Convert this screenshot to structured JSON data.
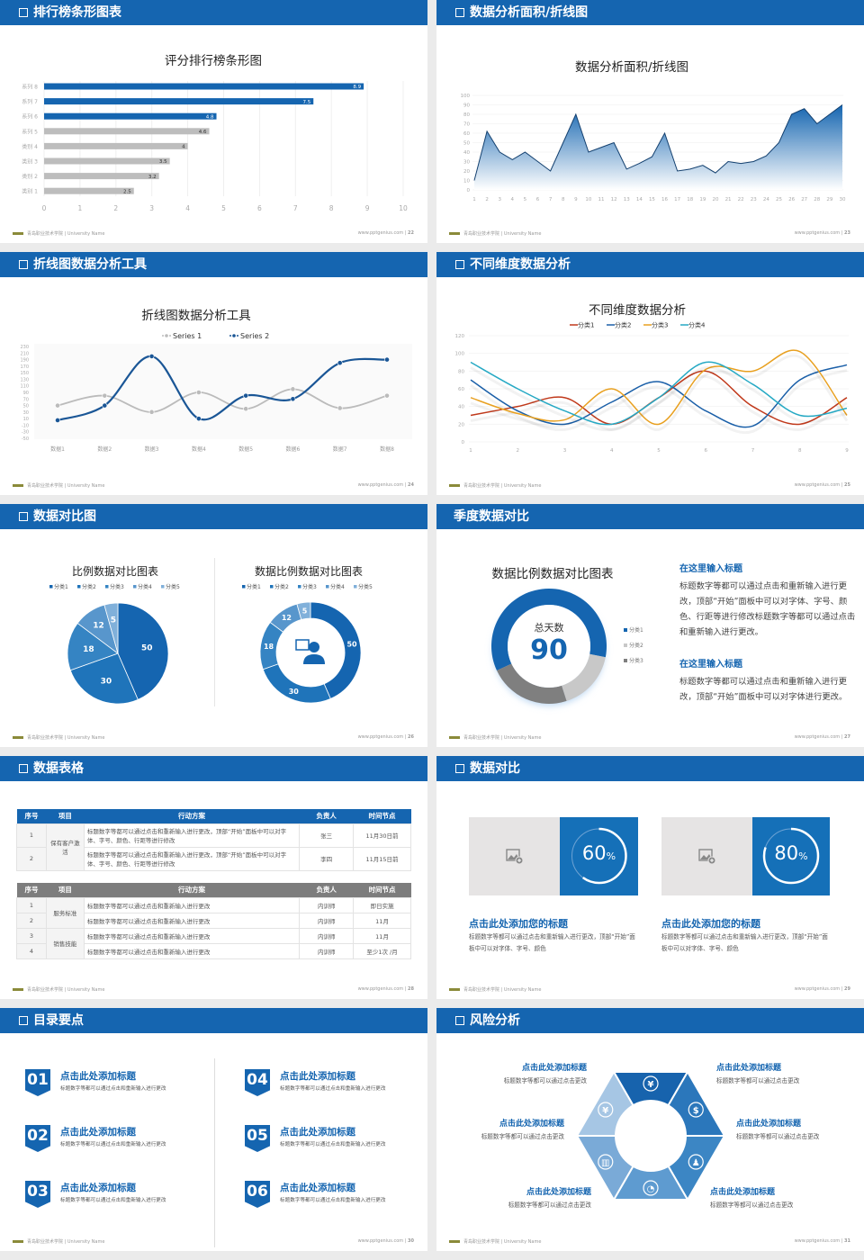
{
  "footer": {
    "school": "青岛职业技术学院 | University Name",
    "site": "www.pptgenius.com"
  },
  "colors": {
    "header_blue": "#1565b0",
    "background": "#ebebeb",
    "gray_bar": "#bdbdbd"
  },
  "slides": [
    {
      "title": "排行榜条形图表",
      "page": "22"
    },
    {
      "title": "数据分析面积/折线图",
      "page": "23"
    },
    {
      "title": "折线图数据分析工具",
      "page": "24"
    },
    {
      "title": "不同维度数据分析",
      "page": "25"
    },
    {
      "title": "数据对比图",
      "page": "26"
    },
    {
      "title": "季度数据对比",
      "page": "27",
      "center_label": "总天数",
      "center_value": "90",
      "blocks": [
        {
          "heading": "在这里输入标题",
          "body": "标题数字等都可以通过点击和重新输入进行更改，顶部“开始”面板中可以对字体、字号、颜色、行距等进行修改标题数字等都可以通过点击和重新输入进行更改。"
        },
        {
          "heading": "在这里输入标题",
          "body": "标题数字等都可以通过点击和重新输入进行更改，顶部“开始”面板中可以对字体进行更改。"
        }
      ]
    },
    {
      "title": "数据表格",
      "page": "28",
      "table1": {
        "headers": [
          "序号",
          "项目",
          "行动方案",
          "负责人",
          "时间节点"
        ],
        "group": "保有客户激活",
        "rows": [
          {
            "no": "1",
            "plan": "标题数字等都可以通过点击和重新输入进行更改，顶部“开始”面板中可以对字体、字号、颜色、行距等进行修改",
            "owner": "张三",
            "time": "11月30日前"
          },
          {
            "no": "2",
            "plan": "标题数字等都可以通过点击和重新输入进行更改，顶部“开始”面板中可以对字体、字号、颜色、行距等进行修改",
            "owner": "李四",
            "time": "11月15日前"
          }
        ]
      },
      "table2": {
        "headers": [
          "序号",
          "项目",
          "行动方案",
          "负责人",
          "时间节点"
        ],
        "groups": [
          "服务标准",
          "销售技能"
        ],
        "rows": [
          {
            "no": "1",
            "plan": "标题数字等都可以通过点击和重新输入进行更改",
            "owner": "内训师",
            "time": "即日实施"
          },
          {
            "no": "2",
            "plan": "标题数字等都可以通过点击和重新输入进行更改",
            "owner": "内训师",
            "time": "11月"
          },
          {
            "no": "3",
            "plan": "标题数字等都可以通过点击和重新输入进行更改",
            "owner": "内训师",
            "time": "11月"
          },
          {
            "no": "4",
            "plan": "标题数字等都可以通过点击和重新输入进行更改",
            "owner": "内训师",
            "time": "至少1次 /月"
          }
        ]
      }
    },
    {
      "title": "数据对比",
      "page": "29",
      "cards": [
        {
          "percent": 60,
          "percent_text": "60",
          "unit": "%",
          "title": "点击此处添加您的标题",
          "body": "标题数字等都可以通过点击和重新输入进行更改，顶部“开始”面板中可以对字体、字号、颜色"
        },
        {
          "percent": 80,
          "percent_text": "80",
          "unit": "%",
          "title": "点击此处添加您的标题",
          "body": "标题数字等都可以通过点击和重新输入进行更改，顶部“开始”面板中可以对字体、字号、颜色"
        }
      ]
    },
    {
      "title": "目录要点",
      "page": "30",
      "items": [
        {
          "num": "01",
          "title": "点击此处添加标题",
          "sub": "标题数字等都可以通过点击和重新输入进行更改"
        },
        {
          "num": "02",
          "title": "点击此处添加标题",
          "sub": "标题数字等都可以通过点击和重新输入进行更改"
        },
        {
          "num": "03",
          "title": "点击此处添加标题",
          "sub": "标题数字等都可以通过点击和重新输入进行更改"
        },
        {
          "num": "04",
          "title": "点击此处添加标题",
          "sub": "标题数字等都可以通过点击和重新输入进行更改"
        },
        {
          "num": "05",
          "title": "点击此处添加标题",
          "sub": "标题数字等都可以通过点击和重新输入进行更改"
        },
        {
          "num": "06",
          "title": "点击此处添加标题",
          "sub": "标题数字等都可以通过点击和重新输入进行更改"
        }
      ]
    },
    {
      "title": "风险分析",
      "page": "31",
      "items": [
        {
          "title": "点击此处添加标题",
          "sub": "标题数字等都可以通过点击更改",
          "icon": "money-bag-icon"
        },
        {
          "title": "点击此处添加标题",
          "sub": "标题数字等都可以通过点击更改",
          "icon": "coins-icon"
        },
        {
          "title": "点击此处添加标题",
          "sub": "标题数字等都可以通过点击更改",
          "icon": "users-icon"
        },
        {
          "title": "点击此处添加标题",
          "sub": "标题数字等都可以通过点击更改",
          "icon": "pie-chart-icon"
        },
        {
          "title": "点击此处添加标题",
          "sub": "标题数字等都可以通过点击更改",
          "icon": "building-icon"
        },
        {
          "title": "点击此处添加标题",
          "sub": "标题数字等都可以通过点击更改",
          "icon": "hand-money-icon"
        }
      ]
    }
  ],
  "chart_data": [
    {
      "type": "bar",
      "orientation": "horizontal",
      "title": "评分排行榜条形图",
      "categories": [
        "系列 8",
        "系列 7",
        "系列 6",
        "系列 5",
        "类别 4",
        "类别 3",
        "类别 2",
        "类别 1"
      ],
      "values": [
        8.9,
        7.5,
        4.8,
        4.6,
        4,
        3.5,
        3.2,
        2.5
      ],
      "value_labels": [
        "8.9",
        "7.5",
        "4.8",
        "4.6",
        "4",
        "3.5",
        "3.2",
        "2.5"
      ],
      "bar_colors": [
        "#1565b0",
        "#1565b0",
        "#1565b0",
        "#bdbdbd",
        "#bdbdbd",
        "#bdbdbd",
        "#bdbdbd",
        "#bdbdbd"
      ],
      "xlim": [
        0,
        10
      ],
      "xticks": [
        "0",
        "1",
        "2",
        "3",
        "4",
        "5",
        "6",
        "7",
        "8",
        "9",
        "10"
      ],
      "grid": true
    },
    {
      "type": "area",
      "title": "数据分析面积/折线图",
      "x": [
        "1",
        "2",
        "3",
        "4",
        "5",
        "6",
        "7",
        "8",
        "9",
        "10",
        "11",
        "12",
        "13",
        "14",
        "15",
        "16",
        "17",
        "18",
        "19",
        "20",
        "21",
        "22",
        "23",
        "24",
        "25",
        "26",
        "27",
        "28",
        "29",
        "30"
      ],
      "values": [
        10,
        62,
        40,
        32,
        40,
        30,
        20,
        50,
        80,
        40,
        45,
        50,
        22,
        28,
        35,
        60,
        20,
        22,
        26,
        18,
        30,
        28,
        30,
        36,
        50,
        80,
        86,
        70,
        80,
        90
      ],
      "ylim": [
        0,
        100
      ],
      "yticks": [
        "0",
        "10",
        "20",
        "30",
        "40",
        "50",
        "60",
        "70",
        "80",
        "90",
        "100"
      ],
      "color": "#1565b0"
    },
    {
      "type": "line",
      "title": "折线图数据分析工具",
      "smooth": true,
      "categories": [
        "数据1",
        "数据2",
        "数据3",
        "数据4",
        "数据5",
        "数据6",
        "数据7",
        "数据8"
      ],
      "series": [
        {
          "name": "Series 1",
          "values": [
            50,
            80,
            30,
            90,
            40,
            100,
            42,
            80
          ],
          "color": "#bbbbbb"
        },
        {
          "name": "Series 2",
          "values": [
            5,
            50,
            200,
            10,
            80,
            70,
            180,
            190
          ],
          "color": "#1a5696"
        }
      ],
      "ylim": [
        -50,
        230
      ],
      "yticks": [
        "230",
        "210",
        "190",
        "170",
        "150",
        "130",
        "110",
        "90",
        "70",
        "50",
        "30",
        "10",
        "-10",
        "-30",
        "-50"
      ],
      "legend": "top"
    },
    {
      "type": "line",
      "title": "不同维度数据分析",
      "smooth": true,
      "x": [
        "1",
        "2",
        "3",
        "4",
        "5",
        "6",
        "7",
        "8",
        "9"
      ],
      "series": [
        {
          "name": "分类1",
          "values": [
            30,
            40,
            50,
            20,
            50,
            80,
            40,
            20,
            50
          ],
          "color": "#c0391b"
        },
        {
          "name": "分类2",
          "values": [
            70,
            35,
            20,
            45,
            68,
            35,
            18,
            70,
            87
          ],
          "color": "#1a5fa8"
        },
        {
          "name": "分类3",
          "values": [
            50,
            32,
            25,
            60,
            20,
            82,
            80,
            102,
            30
          ],
          "color": "#e8a020"
        },
        {
          "name": "分类4",
          "values": [
            90,
            60,
            35,
            20,
            50,
            90,
            65,
            30,
            38
          ],
          "color": "#26a9c4"
        }
      ],
      "ylim": [
        0,
        120
      ],
      "yticks": [
        "0",
        "20",
        "40",
        "60",
        "80",
        "100",
        "120"
      ],
      "legend": "top"
    },
    {
      "type": "pie",
      "title": "比例数据对比图表",
      "categories": [
        "分类1",
        "分类2",
        "分类3",
        "分类4",
        "分类5"
      ],
      "values": [
        50,
        30,
        18,
        12,
        5
      ],
      "value_labels": [
        "50",
        "30",
        "18",
        "12",
        "5"
      ],
      "colors": [
        "#1565b0",
        "#1f74ba",
        "#3584c3",
        "#5896cc",
        "#80b0da"
      ],
      "legend": "top"
    },
    {
      "type": "pie",
      "variant": "donut",
      "title": "数据比例数据对比图表",
      "categories": [
        "分类1",
        "分类2",
        "分类3",
        "分类4",
        "分类5"
      ],
      "values": [
        50,
        30,
        18,
        12,
        5
      ],
      "value_labels": [
        "50",
        "30",
        "18",
        "12",
        "5"
      ],
      "colors": [
        "#1565b0",
        "#1f74ba",
        "#3584c3",
        "#5896cc",
        "#80b0da"
      ],
      "legend": "top",
      "center_icon": "customer-service-icon"
    },
    {
      "type": "pie",
      "variant": "donut",
      "title": "数据比例数据对比图表",
      "categories": [
        "分类1",
        "分类2",
        "分类3"
      ],
      "values": [
        60,
        17,
        23
      ],
      "colors": [
        "#1565b0",
        "#c8c8c8",
        "#7f7f7f"
      ],
      "legend": "right"
    }
  ]
}
